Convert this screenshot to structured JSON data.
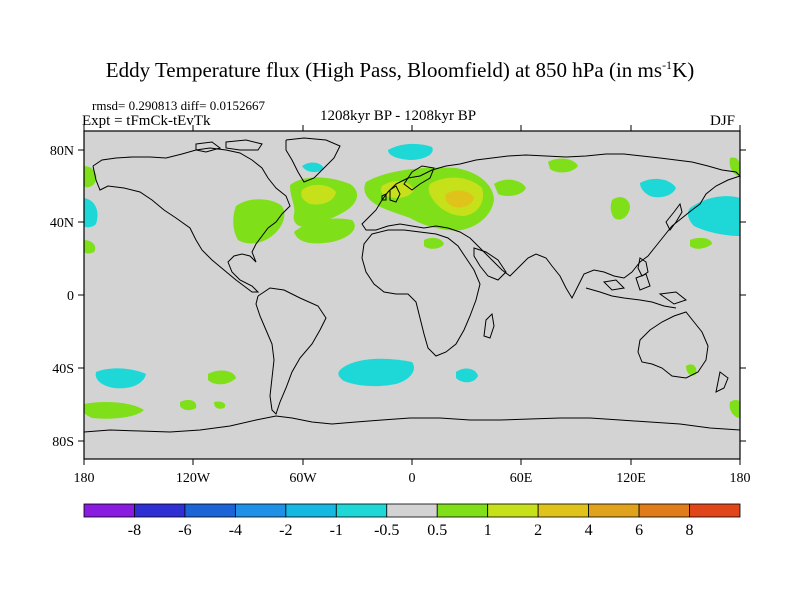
{
  "title": {
    "main": "Eddy Temperature flux (High Pass, Bloomfield) at 850 hPa (in ms",
    "sup": "-1",
    "end": "K)"
  },
  "stats_line": "rmsd= 0.290813 diff= 0.0152667",
  "experiment": "Expt = tFmCk-tEvTk",
  "period": "1208kyr BP - 1208kyr BP",
  "season": "DJF",
  "lat_ticks": [
    "80N",
    "40N",
    "0",
    "40S",
    "80S"
  ],
  "lon_ticks": [
    "180",
    "120W",
    "60W",
    "0",
    "60E",
    "120E",
    "180"
  ],
  "colorbar": {
    "labels": [
      "-8",
      "-6",
      "-4",
      "-2",
      "-1",
      "-0.5",
      "0.5",
      "1",
      "2",
      "4",
      "6",
      "8"
    ],
    "colors": [
      "#8a1be0",
      "#2f2fd6",
      "#1a64d8",
      "#1e90e6",
      "#14b8e0",
      "#1ed8d8",
      "#d3d3d3",
      "#7fe01a",
      "#c6e01a",
      "#e0c31a",
      "#e0a21a",
      "#e07d1a",
      "#e0461a"
    ]
  },
  "map_colors": {
    "land_background": "#d3d3d3",
    "coast": "#000000"
  }
}
